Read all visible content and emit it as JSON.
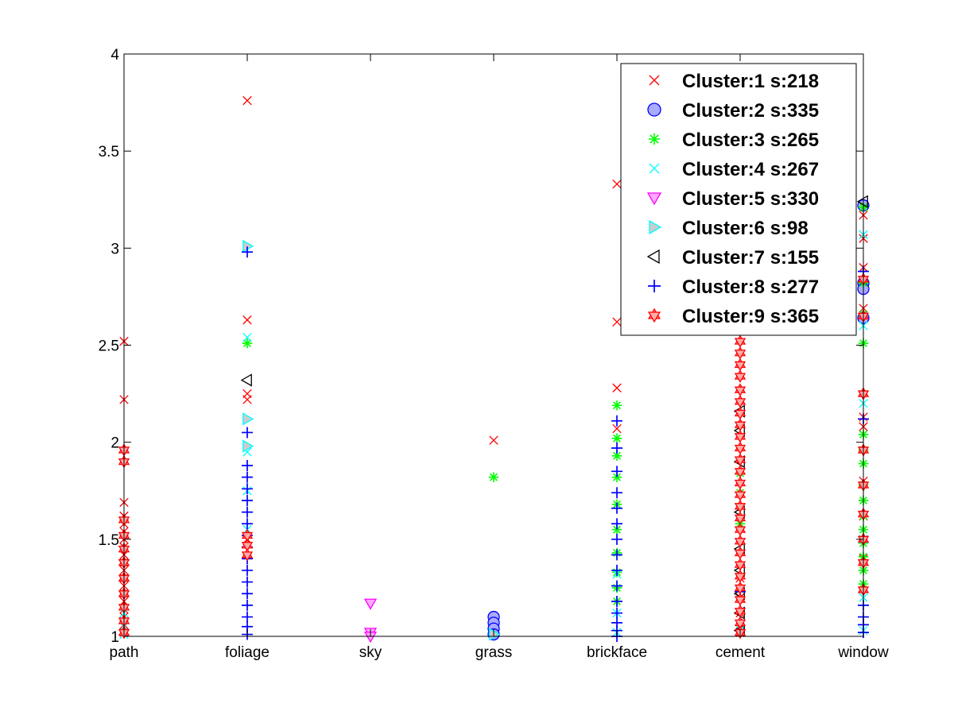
{
  "chart_data": {
    "type": "scatter",
    "title": "",
    "xlabel": "",
    "ylabel": "",
    "categories": [
      "path",
      "foliage",
      "sky",
      "grass",
      "brickface",
      "cement",
      "window"
    ],
    "ylim": [
      1,
      4
    ],
    "yticks": [
      "1",
      "1.5",
      "2",
      "2.5",
      "3",
      "3.5",
      "4"
    ],
    "grid": false,
    "legend_position": "top-right",
    "series": [
      {
        "name": "Cluster:1 s:218",
        "marker": "x",
        "color": "#ff0000",
        "fill": "none",
        "points": [
          [
            "path",
            2.52
          ],
          [
            "path",
            2.22
          ],
          [
            "path",
            1.69
          ],
          [
            "path",
            1.62
          ],
          [
            "path",
            1.58
          ],
          [
            "path",
            1.54
          ],
          [
            "path",
            1.5
          ],
          [
            "path",
            1.46
          ],
          [
            "path",
            1.42
          ],
          [
            "path",
            1.38
          ],
          [
            "path",
            1.34
          ],
          [
            "path",
            1.3
          ],
          [
            "path",
            1.26
          ],
          [
            "path",
            1.22
          ],
          [
            "path",
            1.18
          ],
          [
            "path",
            1.14
          ],
          [
            "path",
            1.1
          ],
          [
            "path",
            1.06
          ],
          [
            "path",
            1.02
          ],
          [
            "foliage",
            3.76
          ],
          [
            "foliage",
            2.63
          ],
          [
            "foliage",
            2.25
          ],
          [
            "foliage",
            2.22
          ],
          [
            "foliage",
            1.5
          ],
          [
            "grass",
            2.01
          ],
          [
            "brickface",
            3.33
          ],
          [
            "brickface",
            2.62
          ],
          [
            "brickface",
            2.28
          ],
          [
            "brickface",
            2.07
          ],
          [
            "cement",
            1.3
          ],
          [
            "cement",
            1.2
          ],
          [
            "cement",
            1.12
          ],
          [
            "cement",
            1.06
          ],
          [
            "cement",
            1.02
          ],
          [
            "window",
            3.17
          ],
          [
            "window",
            3.05
          ],
          [
            "window",
            2.9
          ],
          [
            "window",
            2.69
          ],
          [
            "window",
            2.13
          ],
          [
            "window",
            2.08
          ],
          [
            "window",
            1.8
          ],
          [
            "window",
            1.62
          ],
          [
            "window",
            1.4
          ]
        ]
      },
      {
        "name": "Cluster:2 s:335",
        "marker": "o",
        "color": "#0000ff",
        "fill": "#aaaaff",
        "points": [
          [
            "grass",
            1.1
          ],
          [
            "grass",
            1.07
          ],
          [
            "grass",
            1.04
          ],
          [
            "grass",
            1.01
          ],
          [
            "window",
            3.22
          ],
          [
            "window",
            2.82
          ],
          [
            "window",
            2.79
          ],
          [
            "window",
            2.64
          ]
        ]
      },
      {
        "name": "Cluster:3 s:265",
        "marker": "*",
        "color": "#00ff00",
        "fill": "none",
        "points": [
          [
            "foliage",
            2.51
          ],
          [
            "grass",
            1.82
          ],
          [
            "brickface",
            2.19
          ],
          [
            "brickface",
            2.02
          ],
          [
            "brickface",
            1.93
          ],
          [
            "brickface",
            1.82
          ],
          [
            "brickface",
            1.68
          ],
          [
            "brickface",
            1.55
          ],
          [
            "brickface",
            1.43
          ],
          [
            "brickface",
            1.33
          ],
          [
            "brickface",
            1.25
          ],
          [
            "brickface",
            1.18
          ],
          [
            "cement",
            1.84
          ],
          [
            "cement",
            1.74
          ],
          [
            "cement",
            1.58
          ],
          [
            "window",
            3.21
          ],
          [
            "window",
            2.82
          ],
          [
            "window",
            2.66
          ],
          [
            "window",
            2.51
          ],
          [
            "window",
            2.04
          ],
          [
            "window",
            1.96
          ],
          [
            "window",
            1.89
          ],
          [
            "window",
            1.78
          ],
          [
            "window",
            1.7
          ],
          [
            "window",
            1.62
          ],
          [
            "window",
            1.55
          ],
          [
            "window",
            1.48
          ],
          [
            "window",
            1.41
          ],
          [
            "window",
            1.34
          ],
          [
            "window",
            1.27
          ]
        ]
      },
      {
        "name": "Cluster:4 s:267",
        "marker": "x",
        "color": "#00ffff",
        "fill": "none",
        "points": [
          [
            "path",
            1.12
          ],
          [
            "path",
            1.05
          ],
          [
            "path",
            1.01
          ],
          [
            "foliage",
            2.54
          ],
          [
            "foliage",
            1.95
          ],
          [
            "foliage",
            1.75
          ],
          [
            "foliage",
            1.55
          ],
          [
            "brickface",
            1.32
          ],
          [
            "brickface",
            1.12
          ],
          [
            "brickface",
            1.02
          ],
          [
            "cement",
            1.03
          ],
          [
            "window",
            3.07
          ],
          [
            "window",
            2.6
          ],
          [
            "window",
            2.2
          ],
          [
            "window",
            1.5
          ],
          [
            "window",
            1.2
          ],
          [
            "window",
            1.03
          ]
        ]
      },
      {
        "name": "Cluster:5 s:330",
        "marker": "v",
        "color": "#ff00ff",
        "fill": "#ffaaff",
        "points": [
          [
            "sky",
            1.17
          ],
          [
            "sky",
            1.02
          ],
          [
            "sky",
            1.0
          ]
        ]
      },
      {
        "name": "Cluster:6 s:98",
        "marker": ">",
        "color": "#00ffff",
        "fill": "#cccccc",
        "points": [
          [
            "foliage",
            3.01
          ],
          [
            "foliage",
            2.12
          ],
          [
            "foliage",
            1.98
          ],
          [
            "grass",
            1.01
          ]
        ]
      },
      {
        "name": "Cluster:7 s:155",
        "marker": "<",
        "color": "#000000",
        "fill": "none",
        "points": [
          [
            "foliage",
            2.32
          ],
          [
            "cement",
            2.16
          ],
          [
            "cement",
            2.06
          ],
          [
            "cement",
            1.9
          ],
          [
            "cement",
            1.64
          ],
          [
            "cement",
            1.45
          ],
          [
            "cement",
            1.34
          ],
          [
            "cement",
            1.22
          ],
          [
            "cement",
            1.12
          ],
          [
            "cement",
            1.03
          ],
          [
            "window",
            3.24
          ]
        ]
      },
      {
        "name": "Cluster:8 s:277",
        "marker": "+",
        "color": "#0000ff",
        "fill": "none",
        "points": [
          [
            "foliage",
            2.98
          ],
          [
            "foliage",
            2.05
          ],
          [
            "foliage",
            1.88
          ],
          [
            "foliage",
            1.82
          ],
          [
            "foliage",
            1.76
          ],
          [
            "foliage",
            1.7
          ],
          [
            "foliage",
            1.64
          ],
          [
            "foliage",
            1.58
          ],
          [
            "foliage",
            1.52
          ],
          [
            "foliage",
            1.46
          ],
          [
            "foliage",
            1.4
          ],
          [
            "foliage",
            1.34
          ],
          [
            "foliage",
            1.28
          ],
          [
            "foliage",
            1.22
          ],
          [
            "foliage",
            1.16
          ],
          [
            "foliage",
            1.1
          ],
          [
            "foliage",
            1.05
          ],
          [
            "foliage",
            1.01
          ],
          [
            "brickface",
            2.11
          ],
          [
            "brickface",
            1.97
          ],
          [
            "brickface",
            1.85
          ],
          [
            "brickface",
            1.74
          ],
          [
            "brickface",
            1.66
          ],
          [
            "brickface",
            1.58
          ],
          [
            "brickface",
            1.5
          ],
          [
            "brickface",
            1.42
          ],
          [
            "brickface",
            1.34
          ],
          [
            "brickface",
            1.26
          ],
          [
            "brickface",
            1.18
          ],
          [
            "brickface",
            1.12
          ],
          [
            "brickface",
            1.07
          ],
          [
            "brickface",
            1.03
          ],
          [
            "brickface",
            1.0
          ],
          [
            "cement",
            1.23
          ],
          [
            "window",
            2.88
          ],
          [
            "window",
            2.12
          ],
          [
            "window",
            1.16
          ],
          [
            "window",
            1.1
          ],
          [
            "window",
            1.06
          ],
          [
            "window",
            1.02
          ]
        ]
      },
      {
        "name": "Cluster:9 s:365",
        "marker": "hex",
        "color": "#ff0000",
        "fill": "#ffaaaa",
        "points": [
          [
            "path",
            1.96
          ],
          [
            "path",
            1.9
          ],
          [
            "path",
            1.6
          ],
          [
            "path",
            1.52
          ],
          [
            "path",
            1.45
          ],
          [
            "path",
            1.38
          ],
          [
            "path",
            1.3
          ],
          [
            "path",
            1.22
          ],
          [
            "path",
            1.15
          ],
          [
            "path",
            1.08
          ],
          [
            "path",
            1.02
          ],
          [
            "foliage",
            1.52
          ],
          [
            "foliage",
            1.47
          ],
          [
            "foliage",
            1.42
          ],
          [
            "cement",
            2.52
          ],
          [
            "cement",
            2.46
          ],
          [
            "cement",
            2.4
          ],
          [
            "cement",
            2.34
          ],
          [
            "cement",
            2.27
          ],
          [
            "cement",
            2.21
          ],
          [
            "cement",
            2.15
          ],
          [
            "cement",
            2.09
          ],
          [
            "cement",
            2.03
          ],
          [
            "cement",
            1.97
          ],
          [
            "cement",
            1.91
          ],
          [
            "cement",
            1.85
          ],
          [
            "cement",
            1.79
          ],
          [
            "cement",
            1.73
          ],
          [
            "cement",
            1.67
          ],
          [
            "cement",
            1.61
          ],
          [
            "cement",
            1.55
          ],
          [
            "cement",
            1.49
          ],
          [
            "cement",
            1.43
          ],
          [
            "cement",
            1.37
          ],
          [
            "cement",
            1.31
          ],
          [
            "cement",
            1.25
          ],
          [
            "cement",
            1.19
          ],
          [
            "cement",
            1.13
          ],
          [
            "cement",
            1.07
          ],
          [
            "cement",
            1.02
          ],
          [
            "window",
            2.84
          ],
          [
            "window",
            2.65
          ],
          [
            "window",
            2.25
          ],
          [
            "window",
            1.96
          ],
          [
            "window",
            1.78
          ],
          [
            "window",
            1.63
          ],
          [
            "window",
            1.5
          ],
          [
            "window",
            1.38
          ],
          [
            "window",
            1.24
          ]
        ]
      }
    ]
  }
}
